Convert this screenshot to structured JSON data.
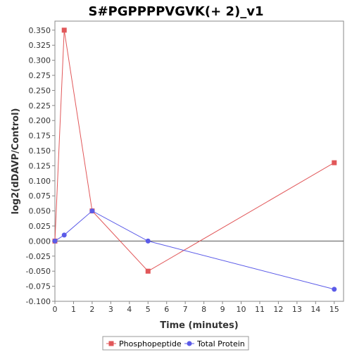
{
  "chart_data": {
    "type": "line",
    "title": "S#PGPPPPVGVK(+ 2)_v1",
    "xlabel": "Time (minutes)",
    "ylabel": "log2(dDAVP/Control)",
    "xlim": [
      0,
      15.5
    ],
    "ylim": [
      -0.1,
      0.365
    ],
    "x_ticks": [
      0,
      1,
      2,
      3,
      4,
      5,
      6,
      7,
      8,
      9,
      10,
      11,
      12,
      13,
      14,
      15
    ],
    "y_ticks": [
      -0.1,
      -0.075,
      -0.05,
      -0.025,
      0.0,
      0.025,
      0.05,
      0.075,
      0.1,
      0.125,
      0.15,
      0.175,
      0.2,
      0.225,
      0.25,
      0.275,
      0.3,
      0.325,
      0.35
    ],
    "y_tick_labels": [
      "-0.100",
      "-0.075",
      "-0.050",
      "-0.025",
      "0.000",
      "0.025",
      "0.050",
      "0.075",
      "0.100",
      "0.125",
      "0.150",
      "0.175",
      "0.200",
      "0.225",
      "0.250",
      "0.275",
      "0.300",
      "0.325",
      "0.350"
    ],
    "zero_line": true,
    "grid": false,
    "legend_position": "bottom",
    "series": [
      {
        "name": "Phosphopeptide",
        "color": "#e15759",
        "marker": "square",
        "x": [
          0,
          0.5,
          2,
          5,
          15
        ],
        "y": [
          0.0,
          0.35,
          0.05,
          -0.05,
          0.13
        ]
      },
      {
        "name": "Total Protein",
        "color": "#5b5be8",
        "marker": "circle",
        "x": [
          0,
          0.5,
          2,
          5,
          15
        ],
        "y": [
          0.0,
          0.01,
          0.05,
          0.0,
          -0.08
        ]
      }
    ]
  }
}
